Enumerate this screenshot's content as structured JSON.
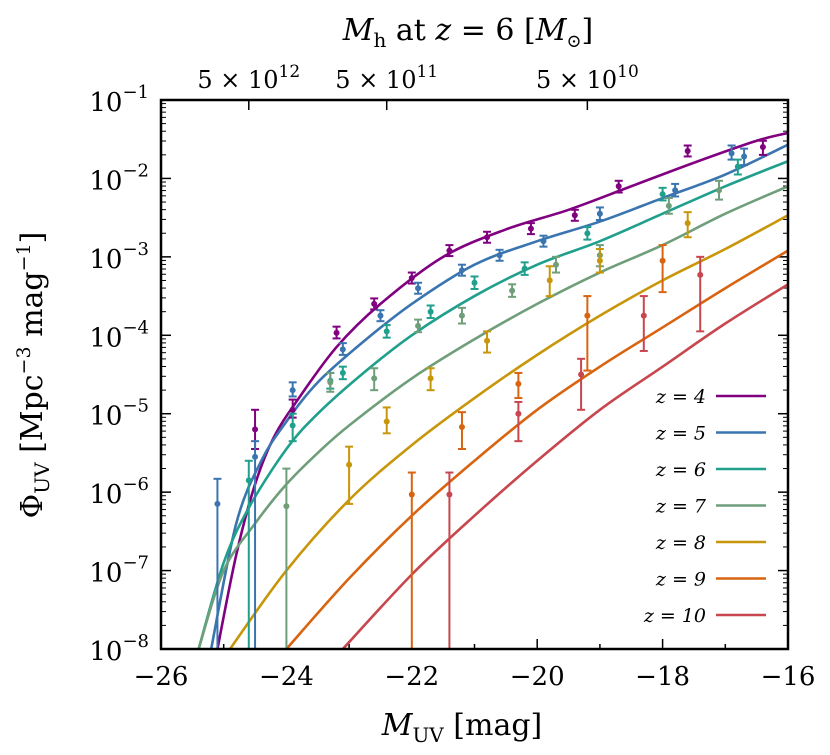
{
  "chart_data": {
    "type": "line",
    "title": "M_h at z = 6 [M_⊙]",
    "title_parts": {
      "m": "M",
      "h": "h",
      "rest": " at ",
      "z": "z",
      "eq": " = 6 [",
      "msun": "M",
      "sun": "⊙",
      "close": "]"
    },
    "xlabel": "M_UV [mag]",
    "xlabel_parts": {
      "m": "M",
      "sub": "UV",
      "rest": " [mag]"
    },
    "ylabel": "Φ_UV [Mpc^-3 mag^-1]",
    "ylabel_parts": {
      "phi": "Φ",
      "sub": "UV",
      "unit1": " [Mpc",
      "exp1": "−3",
      "unit2": " mag",
      "exp2": "−1",
      "close": "]"
    },
    "xlim": [
      -26,
      -16
    ],
    "ylim_log10": [
      -8,
      -1
    ],
    "x_ticks": [
      -26,
      -24,
      -22,
      -20,
      -18,
      -16
    ],
    "x_tick_labels": [
      "−26",
      "−24",
      "−22",
      "−20",
      "−18",
      "−16"
    ],
    "y_ticks_log10": [
      -8,
      -7,
      -6,
      -5,
      -4,
      -3,
      -2,
      -1
    ],
    "y_tick_labels": [
      {
        "base": "10",
        "exp": "−8"
      },
      {
        "base": "10",
        "exp": "−7"
      },
      {
        "base": "10",
        "exp": "−6"
      },
      {
        "base": "10",
        "exp": "−5"
      },
      {
        "base": "10",
        "exp": "−4"
      },
      {
        "base": "10",
        "exp": "−3"
      },
      {
        "base": "10",
        "exp": "−2"
      },
      {
        "base": "10",
        "exp": "−1"
      }
    ],
    "top_ticks": [
      {
        "x_muv": -24.6,
        "mant": "5 × 10",
        "exp": "12"
      },
      {
        "x_muv": -22.4,
        "mant": "5 × 10",
        "exp": "11"
      },
      {
        "x_muv": -19.2,
        "mant": "5 × 10",
        "exp": "10"
      }
    ],
    "legend_position": "lower-right",
    "series": [
      {
        "name": "z = 4",
        "z_value": "4",
        "color": "#800080",
        "curve": [
          [
            -25.1,
            -8.0
          ],
          [
            -24.8,
            -6.8
          ],
          [
            -24.5,
            -5.9
          ],
          [
            -24.2,
            -5.3
          ],
          [
            -23.8,
            -4.8
          ],
          [
            -23.2,
            -4.15
          ],
          [
            -22.5,
            -3.6
          ],
          [
            -21.5,
            -3.0
          ],
          [
            -20.5,
            -2.65
          ],
          [
            -19.5,
            -2.4
          ],
          [
            -18.5,
            -2.1
          ],
          [
            -17.5,
            -1.8
          ],
          [
            -16.5,
            -1.52
          ],
          [
            -16.0,
            -1.42
          ]
        ],
        "points": [
          {
            "x": -24.5,
            "y": -5.2,
            "lo": -5.45,
            "hi": -4.95
          },
          {
            "x": -23.9,
            "y": -4.95,
            "lo": -5.05,
            "hi": -4.82
          },
          {
            "x": -23.2,
            "y": -3.97,
            "lo": -4.04,
            "hi": -3.89
          },
          {
            "x": -22.6,
            "y": -3.6,
            "lo": -3.67,
            "hi": -3.53
          },
          {
            "x": -22.0,
            "y": -3.27,
            "lo": -3.34,
            "hi": -3.2
          },
          {
            "x": -21.4,
            "y": -2.92,
            "lo": -2.99,
            "hi": -2.85
          },
          {
            "x": -20.8,
            "y": -2.75,
            "lo": -2.82,
            "hi": -2.68
          },
          {
            "x": -20.1,
            "y": -2.64,
            "lo": -2.71,
            "hi": -2.57
          },
          {
            "x": -19.4,
            "y": -2.47,
            "lo": -2.54,
            "hi": -2.4
          },
          {
            "x": -18.7,
            "y": -2.1,
            "lo": -2.18,
            "hi": -2.03
          },
          {
            "x": -17.6,
            "y": -1.65,
            "lo": -1.72,
            "hi": -1.58
          },
          {
            "x": -16.4,
            "y": -1.6,
            "lo": -1.7,
            "hi": -1.52
          }
        ]
      },
      {
        "name": "z = 5",
        "z_value": "5",
        "color": "#3A75B0",
        "curve": [
          [
            -25.2,
            -8.0
          ],
          [
            -24.8,
            -6.4
          ],
          [
            -24.4,
            -5.6
          ],
          [
            -24.0,
            -5.1
          ],
          [
            -23.5,
            -4.6
          ],
          [
            -22.8,
            -4.1
          ],
          [
            -22.0,
            -3.6
          ],
          [
            -21.0,
            -3.1
          ],
          [
            -20.0,
            -2.8
          ],
          [
            -19.0,
            -2.55
          ],
          [
            -18.0,
            -2.25
          ],
          [
            -17.0,
            -1.95
          ],
          [
            -16.0,
            -1.57
          ]
        ],
        "points": [
          {
            "x": -25.1,
            "y": -6.15,
            "lo": -8.0,
            "hi": -5.83
          },
          {
            "x": -24.5,
            "y": -5.55,
            "lo": -8.0,
            "hi": -5.35
          },
          {
            "x": -23.9,
            "y": -4.7,
            "lo": -4.78,
            "hi": -4.6
          },
          {
            "x": -23.1,
            "y": -4.18,
            "lo": -4.25,
            "hi": -4.1
          },
          {
            "x": -22.5,
            "y": -3.75,
            "lo": -3.82,
            "hi": -3.68
          },
          {
            "x": -21.9,
            "y": -3.4,
            "lo": -3.47,
            "hi": -3.33
          },
          {
            "x": -21.2,
            "y": -3.17,
            "lo": -3.24,
            "hi": -3.1
          },
          {
            "x": -20.6,
            "y": -2.98,
            "lo": -3.05,
            "hi": -2.91
          },
          {
            "x": -19.9,
            "y": -2.8,
            "lo": -2.87,
            "hi": -2.73
          },
          {
            "x": -19.0,
            "y": -2.45,
            "lo": -2.53,
            "hi": -2.37
          },
          {
            "x": -17.8,
            "y": -2.15,
            "lo": -2.23,
            "hi": -2.07
          },
          {
            "x": -16.9,
            "y": -1.68,
            "lo": -1.76,
            "hi": -1.58
          },
          {
            "x": -16.7,
            "y": -1.72,
            "lo": -1.83,
            "hi": -1.62
          }
        ]
      },
      {
        "name": "z = 6",
        "z_value": "6",
        "color": "#20A08C",
        "curve": [
          [
            -25.4,
            -8.0
          ],
          [
            -25.0,
            -6.9
          ],
          [
            -24.6,
            -6.2
          ],
          [
            -24.0,
            -5.45
          ],
          [
            -23.5,
            -5.0
          ],
          [
            -22.8,
            -4.5
          ],
          [
            -22.0,
            -4.0
          ],
          [
            -21.0,
            -3.5
          ],
          [
            -20.0,
            -3.1
          ],
          [
            -19.0,
            -2.8
          ],
          [
            -18.0,
            -2.45
          ],
          [
            -17.0,
            -2.1
          ],
          [
            -16.0,
            -1.78
          ]
        ],
        "points": [
          {
            "x": -24.6,
            "y": -5.85,
            "lo": -8.0,
            "hi": -5.6
          },
          {
            "x": -23.9,
            "y": -5.15,
            "lo": -5.35,
            "hi": -5.0
          },
          {
            "x": -23.3,
            "y": -4.58,
            "lo": -4.68,
            "hi": -4.48
          },
          {
            "x": -23.1,
            "y": -4.48,
            "lo": -4.56,
            "hi": -4.4
          },
          {
            "x": -22.4,
            "y": -3.95,
            "lo": -4.03,
            "hi": -3.87
          },
          {
            "x": -21.7,
            "y": -3.7,
            "lo": -3.78,
            "hi": -3.62
          },
          {
            "x": -21.0,
            "y": -3.33,
            "lo": -3.41,
            "hi": -3.25
          },
          {
            "x": -20.2,
            "y": -3.15,
            "lo": -3.23,
            "hi": -3.07
          },
          {
            "x": -19.2,
            "y": -2.7,
            "lo": -2.78,
            "hi": -2.62
          },
          {
            "x": -18.0,
            "y": -2.2,
            "lo": -2.28,
            "hi": -2.12
          },
          {
            "x": -16.8,
            "y": -1.85,
            "lo": -1.95,
            "hi": -1.76
          }
        ]
      },
      {
        "name": "z = 7",
        "z_value": "7",
        "color": "#6F9E7A",
        "curve": [
          [
            -25.4,
            -8.0
          ],
          [
            -25.0,
            -7.0
          ],
          [
            -24.5,
            -6.4
          ],
          [
            -24.0,
            -5.9
          ],
          [
            -23.5,
            -5.5
          ],
          [
            -23.0,
            -5.15
          ],
          [
            -22.0,
            -4.55
          ],
          [
            -21.0,
            -4.05
          ],
          [
            -20.0,
            -3.6
          ],
          [
            -19.0,
            -3.2
          ],
          [
            -18.0,
            -2.85
          ],
          [
            -17.0,
            -2.45
          ],
          [
            -16.0,
            -2.1
          ]
        ],
        "points": [
          {
            "x": -24.0,
            "y": -6.18,
            "lo": -8.0,
            "hi": -5.7
          },
          {
            "x": -23.3,
            "y": -4.6,
            "lo": -4.72,
            "hi": -4.48
          },
          {
            "x": -22.6,
            "y": -4.55,
            "lo": -4.7,
            "hi": -4.42
          },
          {
            "x": -21.9,
            "y": -3.88,
            "lo": -3.96,
            "hi": -3.8
          },
          {
            "x": -21.2,
            "y": -3.75,
            "lo": -3.85,
            "hi": -3.65
          },
          {
            "x": -20.4,
            "y": -3.43,
            "lo": -3.51,
            "hi": -3.35
          },
          {
            "x": -19.7,
            "y": -3.1,
            "lo": -3.2,
            "hi": -3.0
          },
          {
            "x": -19.0,
            "y": -2.98,
            "lo": -3.12,
            "hi": -2.85
          },
          {
            "x": -17.9,
            "y": -2.35,
            "lo": -2.45,
            "hi": -2.25
          },
          {
            "x": -17.1,
            "y": -2.15,
            "lo": -2.27,
            "hi": -2.03
          }
        ]
      },
      {
        "name": "z = 8",
        "z_value": "8",
        "color": "#C8960A",
        "curve": [
          [
            -24.9,
            -8.0
          ],
          [
            -24.0,
            -7.0
          ],
          [
            -23.0,
            -6.1
          ],
          [
            -22.0,
            -5.4
          ],
          [
            -21.0,
            -4.8
          ],
          [
            -20.0,
            -4.25
          ],
          [
            -19.0,
            -3.75
          ],
          [
            -18.0,
            -3.3
          ],
          [
            -17.0,
            -2.9
          ],
          [
            -16.0,
            -2.47
          ]
        ],
        "points": [
          {
            "x": -23.0,
            "y": -5.65,
            "lo": -6.15,
            "hi": -5.42
          },
          {
            "x": -22.4,
            "y": -5.1,
            "lo": -5.25,
            "hi": -4.92
          },
          {
            "x": -21.7,
            "y": -4.55,
            "lo": -4.7,
            "hi": -4.42
          },
          {
            "x": -20.8,
            "y": -4.07,
            "lo": -4.22,
            "hi": -3.95
          },
          {
            "x": -19.8,
            "y": -3.3,
            "lo": -3.5,
            "hi": -3.12
          },
          {
            "x": -19.0,
            "y": -3.05,
            "lo": -3.2,
            "hi": -2.9
          },
          {
            "x": -17.6,
            "y": -2.57,
            "lo": -2.75,
            "hi": -2.43
          }
        ]
      },
      {
        "name": "z = 9",
        "z_value": "9",
        "color": "#D86410",
        "curve": [
          [
            -24.0,
            -8.0
          ],
          [
            -23.0,
            -7.1
          ],
          [
            -22.0,
            -6.3
          ],
          [
            -21.0,
            -5.6
          ],
          [
            -20.0,
            -4.95
          ],
          [
            -19.0,
            -4.4
          ],
          [
            -18.0,
            -3.9
          ],
          [
            -17.0,
            -3.4
          ],
          [
            -16.0,
            -2.92
          ]
        ],
        "points": [
          {
            "x": -22.0,
            "y": -6.03,
            "lo": -8.0,
            "hi": -5.75
          },
          {
            "x": -21.2,
            "y": -5.17,
            "lo": -5.45,
            "hi": -4.98
          },
          {
            "x": -20.3,
            "y": -4.62,
            "lo": -4.8,
            "hi": -4.48
          },
          {
            "x": -19.2,
            "y": -3.75,
            "lo": -4.45,
            "hi": -3.5
          },
          {
            "x": -18.0,
            "y": -3.05,
            "lo": -3.45,
            "hi": -2.85
          }
        ]
      },
      {
        "name": "z = 10",
        "z_value": "10",
        "color": "#C8464E",
        "curve": [
          [
            -23.1,
            -8.0
          ],
          [
            -22.0,
            -7.05
          ],
          [
            -21.0,
            -6.3
          ],
          [
            -20.0,
            -5.6
          ],
          [
            -19.0,
            -4.95
          ],
          [
            -18.0,
            -4.4
          ],
          [
            -17.0,
            -3.85
          ],
          [
            -16.0,
            -3.35
          ]
        ],
        "points": [
          {
            "x": -21.4,
            "y": -6.03,
            "lo": -8.0,
            "hi": -5.75
          },
          {
            "x": -20.3,
            "y": -5.0,
            "lo": -5.35,
            "hi": -4.85
          },
          {
            "x": -19.3,
            "y": -4.5,
            "lo": -4.95,
            "hi": -4.3
          },
          {
            "x": -18.3,
            "y": -3.75,
            "lo": -4.2,
            "hi": -3.5
          },
          {
            "x": -17.4,
            "y": -3.23,
            "lo": -3.95,
            "hi": -3.0
          }
        ]
      }
    ]
  }
}
